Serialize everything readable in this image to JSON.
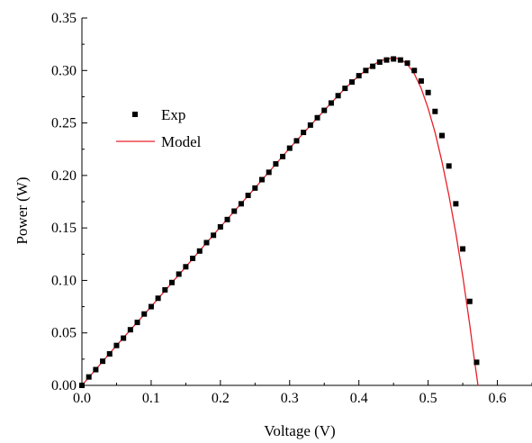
{
  "chart_data": {
    "type": "line",
    "title": "",
    "xlabel": "Voltage (V)",
    "ylabel": "Power (W)",
    "xlim": [
      0.0,
      0.65
    ],
    "ylim": [
      0.0,
      0.35
    ],
    "xticks": [
      "0.0",
      "0.1",
      "0.2",
      "0.3",
      "0.4",
      "0.5",
      "0.6"
    ],
    "yticks": [
      "0.00",
      "0.05",
      "0.10",
      "0.15",
      "0.20",
      "0.25",
      "0.30",
      "0.35"
    ],
    "grid": false,
    "legend_position": "left",
    "series": [
      {
        "name": "Exp",
        "kind": "scatter",
        "color": "#000000",
        "x": [
          0.0,
          0.01,
          0.02,
          0.03,
          0.04,
          0.05,
          0.06,
          0.07,
          0.08,
          0.09,
          0.1,
          0.11,
          0.12,
          0.13,
          0.14,
          0.15,
          0.16,
          0.17,
          0.18,
          0.19,
          0.2,
          0.21,
          0.22,
          0.23,
          0.24,
          0.25,
          0.26,
          0.27,
          0.28,
          0.29,
          0.3,
          0.31,
          0.32,
          0.33,
          0.34,
          0.35,
          0.36,
          0.37,
          0.38,
          0.39,
          0.4,
          0.41,
          0.42,
          0.43,
          0.44,
          0.45,
          0.46,
          0.47,
          0.48,
          0.49,
          0.5,
          0.51,
          0.52,
          0.53,
          0.54,
          0.55,
          0.56,
          0.57
        ],
        "y": [
          0.0,
          0.008,
          0.015,
          0.023,
          0.03,
          0.038,
          0.045,
          0.053,
          0.06,
          0.068,
          0.075,
          0.083,
          0.091,
          0.098,
          0.106,
          0.113,
          0.121,
          0.128,
          0.136,
          0.143,
          0.151,
          0.158,
          0.166,
          0.173,
          0.181,
          0.188,
          0.196,
          0.203,
          0.211,
          0.218,
          0.226,
          0.233,
          0.241,
          0.248,
          0.255,
          0.262,
          0.269,
          0.276,
          0.283,
          0.289,
          0.295,
          0.3,
          0.304,
          0.308,
          0.31,
          0.311,
          0.31,
          0.307,
          0.3,
          0.29,
          0.279,
          0.261,
          0.238,
          0.209,
          0.173,
          0.13,
          0.08,
          0.022
        ]
      },
      {
        "name": "Model",
        "kind": "line",
        "color": "#e8202a",
        "x": [
          0.0,
          0.05,
          0.1,
          0.15,
          0.2,
          0.25,
          0.3,
          0.35,
          0.38,
          0.4,
          0.42,
          0.43,
          0.44,
          0.45,
          0.46,
          0.47,
          0.48,
          0.49,
          0.5,
          0.51,
          0.52,
          0.53,
          0.54,
          0.55,
          0.56,
          0.565,
          0.572
        ],
        "y": [
          0.0,
          0.038,
          0.075,
          0.113,
          0.151,
          0.188,
          0.226,
          0.262,
          0.283,
          0.295,
          0.305,
          0.309,
          0.311,
          0.312,
          0.311,
          0.306,
          0.297,
          0.283,
          0.264,
          0.241,
          0.213,
          0.181,
          0.145,
          0.104,
          0.058,
          0.033,
          0.0
        ]
      }
    ]
  }
}
